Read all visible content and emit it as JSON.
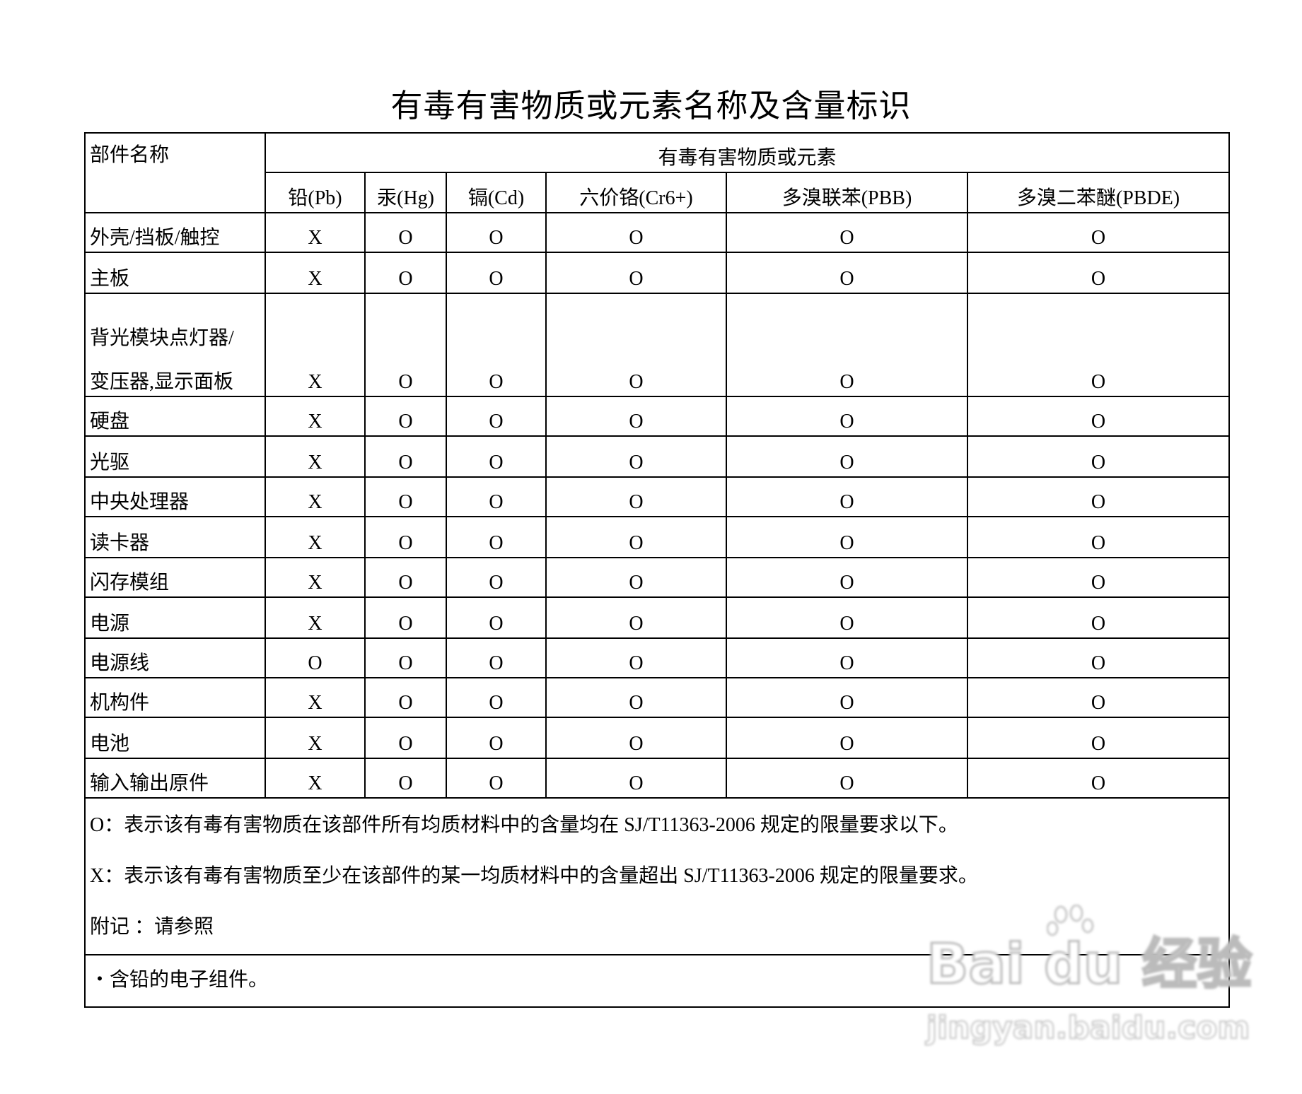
{
  "title": "有毒有害物质或元素名称及含量标识",
  "table": {
    "part_header": "部件名称",
    "group_header": "有毒有害物质或元素",
    "columns": [
      "铅(Pb)",
      "汞(Hg)",
      "镉(Cd)",
      "六价铬(Cr6+)",
      "多溴联苯(PBB)",
      "多溴二苯醚(PBDE)"
    ],
    "rows": [
      {
        "name": "外壳/挡板/触控",
        "values": [
          "X",
          "O",
          "O",
          "O",
          "O",
          "O"
        ]
      },
      {
        "name": "主板",
        "values": [
          "X",
          "O",
          "O",
          "O",
          "O",
          "O"
        ]
      },
      {
        "name": "背光模块点灯器/",
        "name2": "变压器,显示面板",
        "values": [
          "X",
          "O",
          "O",
          "O",
          "O",
          "O"
        ]
      },
      {
        "name": "硬盘",
        "values": [
          "X",
          "O",
          "O",
          "O",
          "O",
          "O"
        ]
      },
      {
        "name": "光驱",
        "values": [
          "X",
          "O",
          "O",
          "O",
          "O",
          "O"
        ]
      },
      {
        "name": "中央处理器",
        "values": [
          "X",
          "O",
          "O",
          "O",
          "O",
          "O"
        ]
      },
      {
        "name": "读卡器",
        "values": [
          "X",
          "O",
          "O",
          "O",
          "O",
          "O"
        ]
      },
      {
        "name": "闪存模组",
        "values": [
          "X",
          "O",
          "O",
          "O",
          "O",
          "O"
        ]
      },
      {
        "name": "电源",
        "values": [
          "X",
          "O",
          "O",
          "O",
          "O",
          "O"
        ]
      },
      {
        "name": "电源线",
        "values": [
          "O",
          "O",
          "O",
          "O",
          "O",
          "O"
        ]
      },
      {
        "name": "机构件",
        "values": [
          "X",
          "O",
          "O",
          "O",
          "O",
          "O"
        ]
      },
      {
        "name": "电池",
        "values": [
          "X",
          "O",
          "O",
          "O",
          "O",
          "O"
        ]
      },
      {
        "name": "输入输出原件",
        "values": [
          "X",
          "O",
          "O",
          "O",
          "O",
          "O"
        ]
      }
    ]
  },
  "notes": {
    "o_note": "O：表示该有毒有害物质在该部件所有均质材料中的含量均在 SJ/T11363-2006 规定的限量要求以下。",
    "x_note": "X：表示该有毒有害物质至少在该部件的某一均质材料中的含量超出 SJ/T11363-2006 规定的限量要求。",
    "appendix": "附记 ：请参照",
    "footnote": "・含铅的电子组件。"
  },
  "watermark": {
    "logo": "Bai du 经验",
    "url": "jingyan.baidu.com"
  }
}
